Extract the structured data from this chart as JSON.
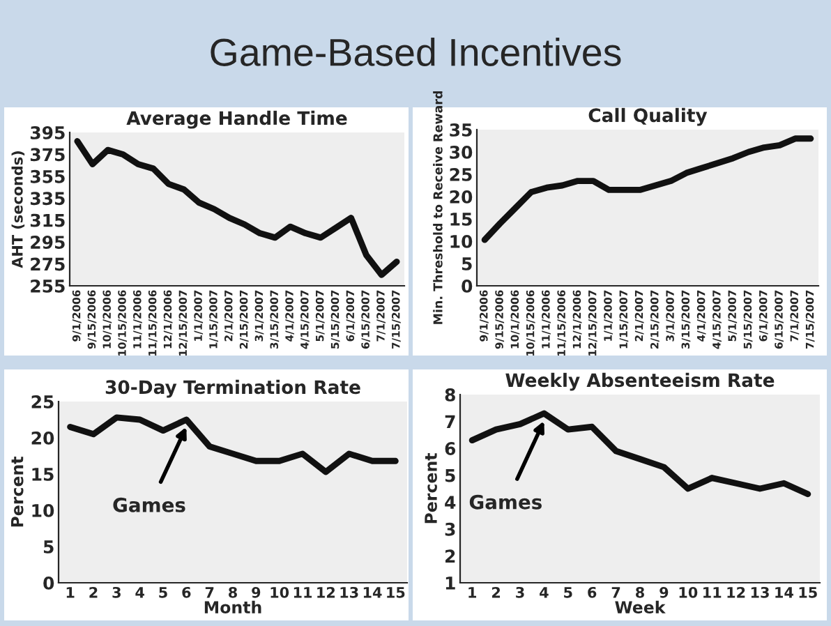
{
  "chart_data": [
    {
      "type": "line",
      "title": "Average Handle Time",
      "ylabel": "AHT (seconds)",
      "annotations": [
        "Game-Based Incentives"
      ],
      "categories": [
        "9/1/2006",
        "9/15/2006",
        "10/1/2006",
        "10/15/2006",
        "11/1/2006",
        "11/15/2006",
        "12/1/2006",
        "12/15/2007",
        "1/1/2007",
        "1/15/2007",
        "2/1/2007",
        "2/15/2007",
        "3/1/2007",
        "3/15/2007",
        "4/1/2007",
        "4/15/2007",
        "5/1/2007",
        "5/15/2007",
        "6/1/2007",
        "6/15/2007",
        "7/1/2007",
        "7/15/2007"
      ],
      "series": [
        {
          "color": "#111111",
          "values": [
            387,
            366,
            379,
            375,
            366,
            362,
            348,
            343,
            331,
            325,
            317,
            311,
            303,
            299,
            309,
            303,
            299,
            308,
            317,
            283,
            265,
            277
          ]
        }
      ],
      "ylim": [
        255,
        395
      ],
      "yticks": [
        255,
        275,
        295,
        315,
        335,
        355,
        375,
        395
      ]
    },
    {
      "type": "line",
      "title": "Call Quality",
      "ylabel": "Min. Threshold to Receive Reward",
      "categories": [
        "9/1/2006",
        "9/15/2006",
        "10/1/2006",
        "10/15/2006",
        "11/1/2006",
        "11/15/2006",
        "12/1/2006",
        "12/15/2007",
        "1/1/2007",
        "1/15/2007",
        "2/1/2007",
        "2/15/2007",
        "3/1/2007",
        "3/15/2007",
        "4/1/2007",
        "4/15/2007",
        "5/1/2007",
        "5/15/2007",
        "6/1/2007",
        "6/15/2007",
        "7/1/2007",
        "7/15/2007"
      ],
      "series": [
        {
          "color": "#111111",
          "values": [
            10.3,
            14,
            17.5,
            21,
            22,
            22.5,
            23.5,
            23.5,
            21.5,
            21.5,
            21.5,
            22.5,
            23.5,
            25.3,
            26.4,
            27.5,
            28.6,
            30,
            31,
            31.5,
            33,
            33
          ]
        }
      ],
      "ylim": [
        0,
        35
      ],
      "yticks": [
        0,
        5,
        10,
        15,
        20,
        25,
        30,
        35
      ]
    },
    {
      "type": "line",
      "title": "30-Day Termination Rate",
      "xlabel": "Month",
      "ylabel": "Percent",
      "annotations": [
        {
          "text": "Games",
          "x": "6",
          "y": 22.5
        }
      ],
      "categories": [
        "1",
        "2",
        "3",
        "4",
        "5",
        "6",
        "7",
        "8",
        "9",
        "10",
        "11",
        "12",
        "13",
        "14",
        "15"
      ],
      "series": [
        {
          "color": "#111111",
          "values": [
            21.5,
            20.5,
            22.8,
            22.5,
            21,
            22.5,
            18.8,
            17.8,
            16.8,
            16.8,
            17.8,
            15.3,
            17.8,
            16.8,
            16.8
          ]
        }
      ],
      "ylim": [
        0,
        25
      ],
      "yticks": [
        0,
        5,
        10,
        15,
        20,
        25
      ]
    },
    {
      "type": "line",
      "title": "Weekly Absenteeism Rate",
      "xlabel": "Week",
      "ylabel": "Percent",
      "annotations": [
        {
          "text": "Games",
          "x": "4",
          "y": 7.3
        }
      ],
      "categories": [
        "1",
        "2",
        "3",
        "4",
        "5",
        "6",
        "7",
        "8",
        "9",
        "10",
        "11",
        "12",
        "13",
        "14",
        "15"
      ],
      "series": [
        {
          "color": "#111111",
          "values": [
            6.3,
            6.7,
            6.9,
            7.3,
            6.7,
            6.8,
            5.9,
            5.6,
            5.3,
            4.5,
            4.9,
            4.7,
            4.5,
            4.7,
            4.3
          ]
        }
      ],
      "ylim": [
        1,
        8
      ],
      "yticks": [
        1,
        2,
        3,
        4,
        5,
        6,
        7,
        8
      ]
    }
  ]
}
